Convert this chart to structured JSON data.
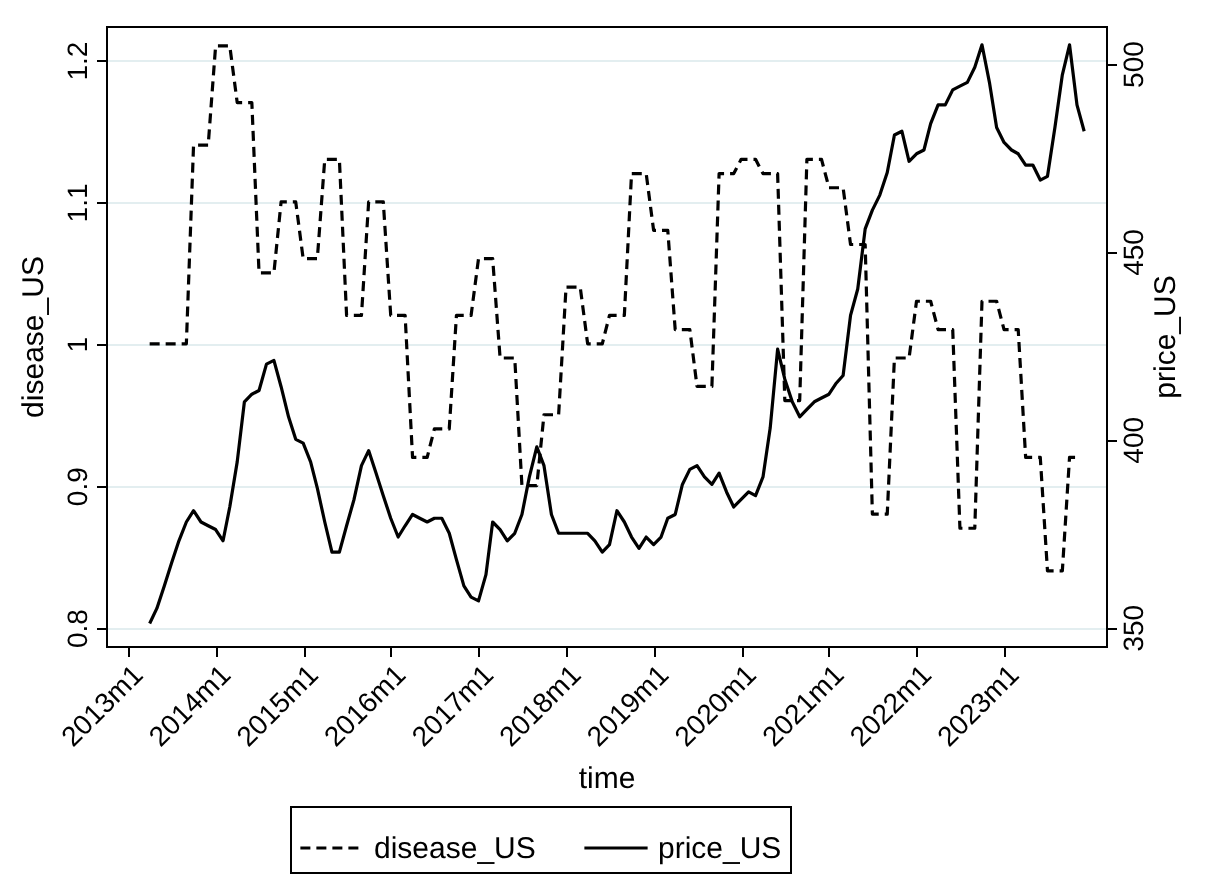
{
  "chart_data": {
    "type": "line",
    "xlabel": "time",
    "ylabel": "disease_US",
    "y2label": "price_US",
    "x": [
      "2013-04",
      "2013-05",
      "2013-06",
      "2013-07",
      "2013-08",
      "2013-09",
      "2013-10",
      "2013-11",
      "2013-12",
      "2014-01",
      "2014-02",
      "2014-03",
      "2014-04",
      "2014-05",
      "2014-06",
      "2014-07",
      "2014-08",
      "2014-09",
      "2014-10",
      "2014-11",
      "2014-12",
      "2015-01",
      "2015-02",
      "2015-03",
      "2015-04",
      "2015-05",
      "2015-06",
      "2015-07",
      "2015-08",
      "2015-09",
      "2015-10",
      "2015-11",
      "2015-12",
      "2016-01",
      "2016-02",
      "2016-03",
      "2016-04",
      "2016-05",
      "2016-06",
      "2016-07",
      "2016-08",
      "2016-09",
      "2016-10",
      "2016-11",
      "2016-12",
      "2017-01",
      "2017-02",
      "2017-03",
      "2017-04",
      "2017-05",
      "2017-06",
      "2017-07",
      "2017-08",
      "2017-09",
      "2017-10",
      "2017-11",
      "2017-12",
      "2018-01",
      "2018-02",
      "2018-03",
      "2018-04",
      "2018-05",
      "2018-06",
      "2018-07",
      "2018-08",
      "2018-09",
      "2018-10",
      "2018-11",
      "2018-12",
      "2019-01",
      "2019-02",
      "2019-03",
      "2019-04",
      "2019-05",
      "2019-06",
      "2019-07",
      "2019-08",
      "2019-09",
      "2019-10",
      "2019-11",
      "2019-12",
      "2020-01",
      "2020-02",
      "2020-03",
      "2020-04",
      "2020-05",
      "2020-06",
      "2020-07",
      "2020-08",
      "2020-09",
      "2020-10",
      "2020-11",
      "2020-12",
      "2021-01",
      "2021-02",
      "2021-03",
      "2021-04",
      "2021-05",
      "2021-06",
      "2021-07",
      "2021-08",
      "2021-09",
      "2021-10",
      "2021-11",
      "2021-12",
      "2022-01",
      "2022-02",
      "2022-03",
      "2022-04",
      "2022-05",
      "2022-06",
      "2022-07",
      "2022-08",
      "2022-09",
      "2022-10",
      "2022-11",
      "2022-12",
      "2023-01",
      "2023-02",
      "2023-03",
      "2023-04",
      "2023-05",
      "2023-06",
      "2023-07",
      "2023-08",
      "2023-09",
      "2023-10",
      "2023-11",
      "2023-12"
    ],
    "series": [
      {
        "name": "disease_US",
        "color": "#000000",
        "line_style": "dashed",
        "values": [
          1.0,
          1.0,
          1.0,
          1.0,
          1.0,
          1.0,
          1.14,
          1.14,
          1.14,
          1.21,
          1.21,
          1.21,
          1.17,
          1.17,
          1.17,
          1.05,
          1.05,
          1.05,
          1.1,
          1.1,
          1.1,
          1.06,
          1.06,
          1.06,
          1.13,
          1.13,
          1.13,
          1.02,
          1.02,
          1.02,
          1.1,
          1.1,
          1.1,
          1.02,
          1.02,
          1.02,
          0.92,
          0.92,
          0.92,
          0.94,
          0.94,
          0.94,
          1.02,
          1.02,
          1.02,
          1.06,
          1.06,
          1.06,
          0.99,
          0.99,
          0.99,
          0.9,
          0.9,
          0.9,
          0.95,
          0.95,
          0.95,
          1.04,
          1.04,
          1.04,
          1.0,
          1.0,
          1.0,
          1.02,
          1.02,
          1.02,
          1.12,
          1.12,
          1.12,
          1.08,
          1.08,
          1.08,
          1.01,
          1.01,
          1.01,
          0.97,
          0.97,
          0.97,
          1.12,
          1.12,
          1.12,
          1.13,
          1.13,
          1.13,
          1.12,
          1.12,
          1.12,
          0.96,
          0.96,
          0.96,
          1.13,
          1.13,
          1.13,
          1.11,
          1.11,
          1.11,
          1.07,
          1.07,
          1.07,
          0.88,
          0.88,
          0.88,
          0.99,
          0.99,
          0.99,
          1.03,
          1.03,
          1.03,
          1.01,
          1.01,
          1.01,
          0.87,
          0.87,
          0.87,
          1.03,
          1.03,
          1.03,
          1.01,
          1.01,
          1.01,
          0.92,
          0.92,
          0.92,
          0.84,
          0.84,
          0.84,
          0.92,
          0.92,
          null
        ]
      },
      {
        "name": "price_US",
        "color": "#000000",
        "line_style": "solid",
        "axis": "y2",
        "values": [
          351,
          355,
          361,
          367,
          373,
          378,
          381,
          378,
          377,
          376,
          373,
          382,
          394,
          410,
          412,
          413,
          420,
          421,
          414,
          406,
          400,
          399,
          394,
          387,
          378,
          370,
          370,
          377,
          384,
          393,
          397,
          391,
          385,
          379,
          374,
          377,
          380,
          379,
          378,
          379,
          379,
          375,
          368,
          361,
          358,
          357,
          364,
          378,
          376,
          373,
          375,
          380,
          390,
          398,
          393,
          380,
          375,
          375,
          375,
          375,
          375,
          373,
          370,
          372,
          381,
          378,
          374,
          371,
          374,
          372,
          374,
          379,
          380,
          388,
          392,
          393,
          390,
          388,
          391,
          386,
          382,
          384,
          386,
          385,
          390,
          403,
          424,
          416,
          410,
          406,
          408,
          410,
          411,
          412,
          415,
          417,
          433,
          440,
          456,
          461,
          465,
          471,
          481,
          482,
          474,
          476,
          477,
          484,
          489,
          489,
          493,
          494,
          495,
          499,
          505,
          495,
          483,
          479,
          477,
          476,
          473,
          473,
          469,
          470,
          483,
          497,
          505,
          489,
          482
        ]
      }
    ],
    "xlim": [
      "2012-10",
      "2024-03"
    ],
    "xticks": [
      {
        "value": "2013-01",
        "label": "2013m1"
      },
      {
        "value": "2014-01",
        "label": "2014m1"
      },
      {
        "value": "2015-01",
        "label": "2015m1"
      },
      {
        "value": "2016-01",
        "label": "2016m1"
      },
      {
        "value": "2017-01",
        "label": "2017m1"
      },
      {
        "value": "2018-01",
        "label": "2018m1"
      },
      {
        "value": "2019-01",
        "label": "2019m1"
      },
      {
        "value": "2020-01",
        "label": "2020m1"
      },
      {
        "value": "2021-01",
        "label": "2021m1"
      },
      {
        "value": "2022-01",
        "label": "2022m1"
      },
      {
        "value": "2023-01",
        "label": "2023m1"
      }
    ],
    "ylim": [
      0.787,
      1.224
    ],
    "yticks": [
      0.8,
      0.9,
      1,
      1.1,
      1.2
    ],
    "y2lim": [
      345,
      510
    ],
    "y2ticks": [
      350,
      400,
      450,
      500
    ],
    "grid": "y",
    "legend": "bottom"
  }
}
